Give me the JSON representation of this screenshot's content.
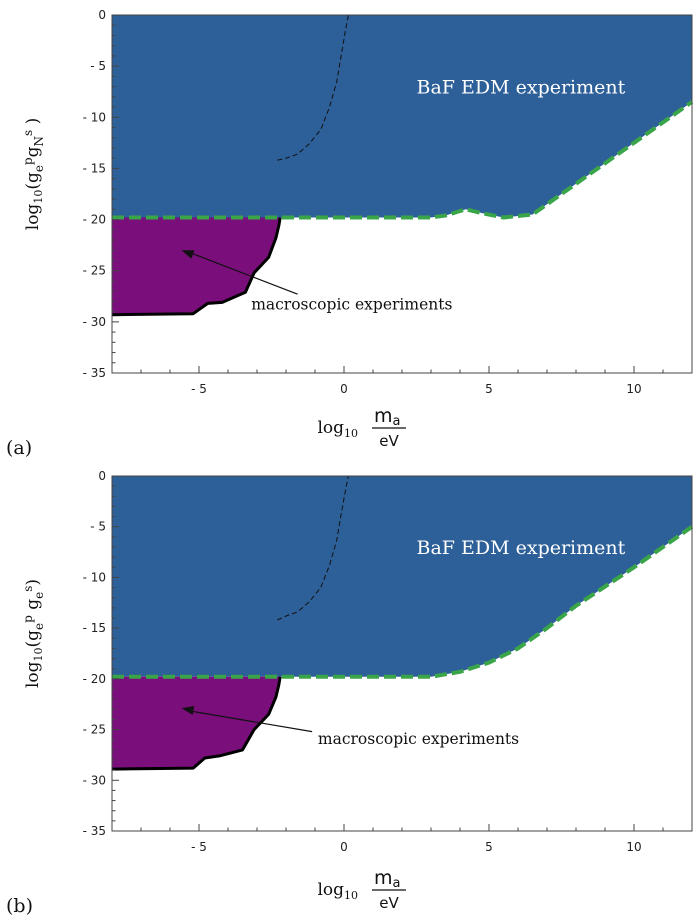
{
  "chart_data": [
    {
      "panel_label": "(a)",
      "type": "area",
      "xlabel": {
        "prefix": "log",
        "sub": "10",
        "num": "m",
        "num_sub": "a",
        "den": "eV"
      },
      "ylabel": {
        "prefix": "log",
        "sub": "10",
        "text": "(g",
        "p1": "e",
        "p1sup": "p",
        "p2": "g",
        "p2sub": "N",
        "p2sup": "s",
        "close": " )"
      },
      "xlim": [
        -8,
        12
      ],
      "ylim": [
        -35,
        0
      ],
      "x_ticks": [
        -5,
        0,
        5,
        10
      ],
      "x_tick_labels": [
        "- 5",
        "0",
        "5",
        "10"
      ],
      "y_ticks": [
        0,
        -5,
        -10,
        -15,
        -20,
        -25,
        -30,
        -35
      ],
      "y_tick_labels": [
        "0",
        "- 5",
        "- 10",
        "- 15",
        "- 20",
        "- 25",
        "- 30",
        "- 35"
      ],
      "annotations": {
        "edm": "BaF EDM experiment",
        "macro": "macroscopic experiments"
      },
      "colors": {
        "edm": "#2d5f98",
        "macro": "#7a0f7c",
        "limit": "#3aa548",
        "boundary": "#000000"
      },
      "series": [
        {
          "name": "BaF EDM experiment",
          "x": [
            -8,
            3,
            3.5,
            4.2,
            4.8,
            5.5,
            6.5,
            12
          ],
          "y": [
            -19.8,
            -19.8,
            -19.6,
            -19,
            -19.4,
            -19.8,
            -19.5,
            -8.5
          ]
        },
        {
          "name": "macroscopic experiments",
          "x": [
            -8,
            -5.2,
            -4.7,
            -4.2,
            -3.4,
            -3.1,
            -2.6,
            -2.35,
            -2.25,
            -2.2
          ],
          "y": [
            -29.3,
            -29.2,
            -28.2,
            -28.1,
            -27.1,
            -25.2,
            -23.7,
            -21.8,
            -20.6,
            -19.8
          ]
        },
        {
          "name": "dashed",
          "x": [
            -2.3,
            -2,
            -1.6,
            -1.2,
            -0.8,
            -0.5,
            -0.25,
            -0.1,
            0.05,
            0.15
          ],
          "y": [
            -14.2,
            -14,
            -13.6,
            -12.6,
            -11.2,
            -9,
            -6.5,
            -4,
            -1.5,
            0
          ]
        }
      ]
    },
    {
      "panel_label": "(b)",
      "type": "area",
      "xlabel": {
        "prefix": "log",
        "sub": "10",
        "num": "m",
        "num_sub": "a",
        "den": "eV"
      },
      "ylabel": {
        "prefix": "log",
        "sub": "10",
        "text": "(g",
        "p1": "e",
        "p1sup": "p",
        "p2": " g",
        "p2sub": "e",
        "p2sup": "s",
        "close": ")"
      },
      "xlim": [
        -8,
        12
      ],
      "ylim": [
        -35,
        0
      ],
      "x_ticks": [
        -5,
        0,
        5,
        10
      ],
      "x_tick_labels": [
        "- 5",
        "0",
        "5",
        "10"
      ],
      "y_ticks": [
        0,
        -5,
        -10,
        -15,
        -20,
        -25,
        -30,
        -35
      ],
      "y_tick_labels": [
        "0",
        "- 5",
        "- 10",
        "- 15",
        "- 20",
        "- 25",
        "- 30",
        "- 35"
      ],
      "annotations": {
        "edm": "BaF EDM experiment",
        "macro": "macroscopic experiments"
      },
      "colors": {
        "edm": "#2d5f98",
        "macro": "#7a0f7c",
        "limit": "#3aa548",
        "boundary": "#000000"
      },
      "series": [
        {
          "name": "BaF EDM experiment",
          "x": [
            -8,
            3,
            4,
            5,
            6,
            7,
            8,
            9,
            10,
            11,
            12
          ],
          "y": [
            -19.8,
            -19.8,
            -19.3,
            -18.4,
            -17,
            -15,
            -12.8,
            -10.9,
            -9,
            -7,
            -5
          ]
        },
        {
          "name": "macroscopic experiments",
          "x": [
            -8,
            -5.2,
            -4.8,
            -4.3,
            -3.5,
            -3.1,
            -2.6,
            -2.35,
            -2.25,
            -2.2
          ],
          "y": [
            -28.9,
            -28.8,
            -27.8,
            -27.6,
            -27.0,
            -25.0,
            -23.5,
            -21.8,
            -20.6,
            -19.8
          ]
        },
        {
          "name": "dashed",
          "x": [
            -2.3,
            -2,
            -1.6,
            -1.2,
            -0.8,
            -0.5,
            -0.25,
            -0.1,
            0.05,
            0.15
          ],
          "y": [
            -14.2,
            -13.8,
            -13.4,
            -12.4,
            -11,
            -8.8,
            -6.3,
            -3.8,
            -1.4,
            0
          ]
        }
      ]
    }
  ]
}
